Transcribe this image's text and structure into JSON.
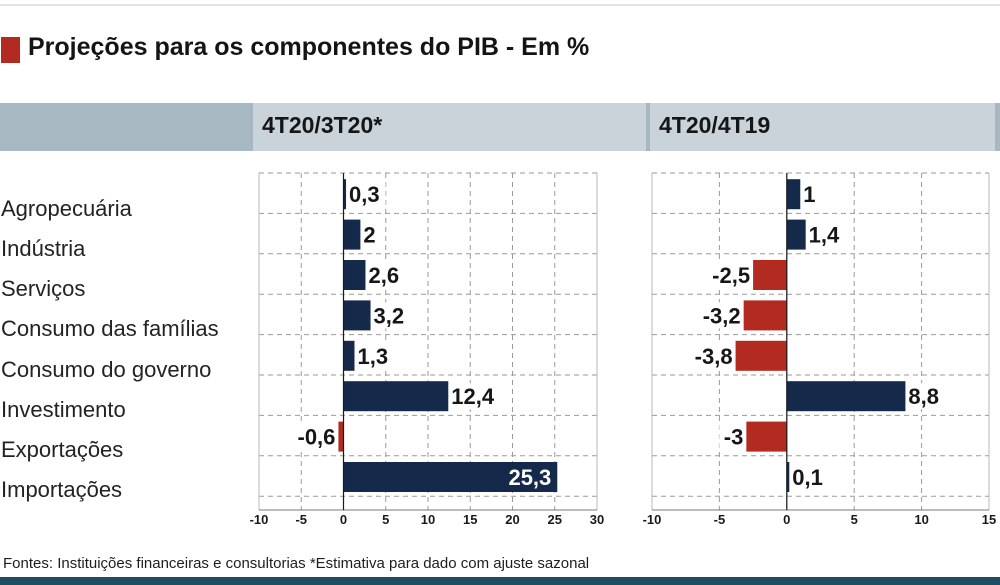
{
  "title": "Projeções para os componentes do PIB - Em %",
  "footer": "Fontes: Instituições financeiras e consultorias *Estimativa para dado com ajuste sazonal",
  "colors": {
    "positive": "#15294a",
    "negative": "#b22a20",
    "accent": "#b22a20",
    "header": "#c9d3d9"
  },
  "chart_data": [
    {
      "type": "bar",
      "orientation": "horizontal",
      "title": "4T20/3T20*",
      "categories": [
        "Agropecuária",
        "Indústria",
        "Serviços",
        "Consumo das famílias",
        "Consumo do governo",
        "Investimento",
        "Exportações",
        "Importações"
      ],
      "values": [
        0.3,
        2,
        2.6,
        3.2,
        1.3,
        12.4,
        -0.6,
        25.3
      ],
      "value_labels": [
        "0,3",
        "2",
        "2,6",
        "3,2",
        "1,3",
        "12,4",
        "-0,6",
        "25,3"
      ],
      "xlim": [
        -10,
        30
      ],
      "ticks": [
        "-10",
        "-5",
        "0",
        "5",
        "10",
        "15",
        "20",
        "25",
        "30"
      ],
      "grid": true
    },
    {
      "type": "bar",
      "orientation": "horizontal",
      "title": "4T20/4T19",
      "categories": [
        "Agropecuária",
        "Indústria",
        "Serviços",
        "Consumo das famílias",
        "Consumo do governo",
        "Investimento",
        "Exportações",
        "Importações"
      ],
      "values": [
        1,
        1.4,
        -2.5,
        -3.2,
        -3.8,
        8.8,
        -3,
        0.1
      ],
      "value_labels": [
        "1",
        "1,4",
        "-2,5",
        "-3,2",
        "-3,8",
        "8,8",
        "-3",
        "0,1"
      ],
      "xlim": [
        -10,
        15
      ],
      "ticks": [
        "-10",
        "-5",
        "0",
        "5",
        "10",
        "15"
      ],
      "grid": true
    }
  ]
}
